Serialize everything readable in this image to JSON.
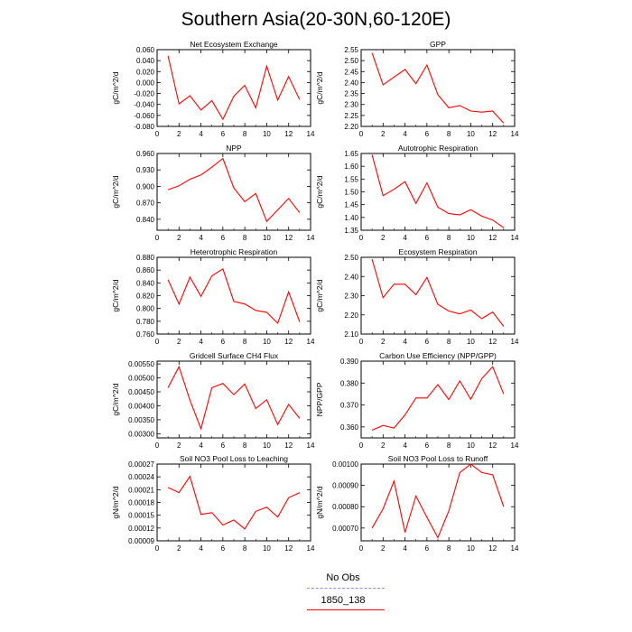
{
  "title": "Southern Asia(20-30N,60-120E)",
  "legend": [
    {
      "label": "No Obs",
      "color": "#8c8cff",
      "dash": true
    },
    {
      "label": "1850_138",
      "color": "#ff0000",
      "dash": false
    }
  ],
  "chart_data": [
    {
      "type": "line",
      "title": "Net Ecosystem Exchange",
      "ylabel": "gC/m^2/d",
      "xlim": [
        0,
        14
      ],
      "xticks": [
        0,
        2,
        4,
        6,
        8,
        10,
        12,
        14
      ],
      "ylim": [
        -0.08,
        0.06
      ],
      "yticks": [
        "-0.080",
        "-0.060",
        "-0.040",
        "-0.020",
        "0.000",
        "0.020",
        "0.040",
        "0.060"
      ],
      "x": [
        1,
        2,
        3,
        4,
        5,
        6,
        7,
        8,
        9,
        10,
        11,
        12,
        13
      ],
      "series": [
        {
          "name": "1850_138",
          "values": [
            0.049,
            -0.039,
            -0.024,
            -0.05,
            -0.033,
            -0.067,
            -0.025,
            -0.005,
            -0.046,
            0.03,
            -0.032,
            0.011,
            -0.031
          ]
        }
      ]
    },
    {
      "type": "line",
      "title": "GPP",
      "ylabel": "gC/m^2/d",
      "xlim": [
        0,
        14
      ],
      "xticks": [
        0,
        2,
        4,
        6,
        8,
        10,
        12,
        14
      ],
      "ylim": [
        2.2,
        2.55
      ],
      "yticks": [
        "2.20",
        "2.25",
        "2.30",
        "2.35",
        "2.40",
        "2.45",
        "2.50",
        "2.55"
      ],
      "x": [
        1,
        2,
        3,
        4,
        5,
        6,
        7,
        8,
        9,
        10,
        11,
        12,
        13
      ],
      "series": [
        {
          "name": "1850_138",
          "values": [
            2.535,
            2.39,
            2.425,
            2.46,
            2.395,
            2.48,
            2.345,
            2.285,
            2.295,
            2.27,
            2.265,
            2.27,
            2.215
          ]
        }
      ]
    },
    {
      "type": "line",
      "title": "NPP",
      "ylabel": "gC/m^2/d",
      "xlim": [
        0,
        14
      ],
      "xticks": [
        0,
        2,
        4,
        6,
        8,
        10,
        12,
        14
      ],
      "ylim": [
        0.82,
        0.96
      ],
      "yticks": [
        "0.840",
        "0.870",
        "0.900",
        "0.930",
        "0.960"
      ],
      "ytickvals": [
        0.84,
        0.87,
        0.9,
        0.93,
        0.96
      ],
      "x": [
        1,
        2,
        3,
        4,
        5,
        6,
        7,
        8,
        9,
        10,
        11,
        12,
        13
      ],
      "series": [
        {
          "name": "1850_138",
          "values": [
            0.894,
            0.901,
            0.913,
            0.921,
            0.935,
            0.951,
            0.897,
            0.872,
            0.887,
            0.836,
            0.857,
            0.878,
            0.852
          ]
        }
      ]
    },
    {
      "type": "line",
      "title": "Autotrophic Respiration",
      "ylabel": "gC/m^2/d",
      "xlim": [
        0,
        14
      ],
      "xticks": [
        0,
        2,
        4,
        6,
        8,
        10,
        12,
        14
      ],
      "ylim": [
        1.35,
        1.65
      ],
      "yticks": [
        "1.35",
        "1.40",
        "1.45",
        "1.50",
        "1.55",
        "1.60",
        "1.65"
      ],
      "x": [
        1,
        2,
        3,
        4,
        5,
        6,
        7,
        8,
        9,
        10,
        11,
        12,
        13
      ],
      "series": [
        {
          "name": "1850_138",
          "values": [
            1.645,
            1.485,
            1.51,
            1.54,
            1.455,
            1.535,
            1.44,
            1.415,
            1.41,
            1.43,
            1.405,
            1.39,
            1.36
          ]
        }
      ]
    },
    {
      "type": "line",
      "title": "Heterotrophic Respiration",
      "ylabel": "gC/m^2/d",
      "xlim": [
        0,
        14
      ],
      "xticks": [
        0,
        2,
        4,
        6,
        8,
        10,
        12,
        14
      ],
      "ylim": [
        0.76,
        0.88
      ],
      "yticks": [
        "0.760",
        "0.780",
        "0.800",
        "0.820",
        "0.840",
        "0.860",
        "0.880"
      ],
      "x": [
        1,
        2,
        3,
        4,
        5,
        6,
        7,
        8,
        9,
        10,
        11,
        12,
        13
      ],
      "series": [
        {
          "name": "1850_138",
          "values": [
            0.845,
            0.807,
            0.849,
            0.819,
            0.851,
            0.862,
            0.811,
            0.807,
            0.797,
            0.794,
            0.777,
            0.826,
            0.779
          ]
        }
      ]
    },
    {
      "type": "line",
      "title": "Ecosystem Respiration",
      "ylabel": "gC/m^2/d",
      "xlim": [
        0,
        14
      ],
      "xticks": [
        0,
        2,
        4,
        6,
        8,
        10,
        12,
        14
      ],
      "ylim": [
        2.1,
        2.5
      ],
      "yticks": [
        "2.10",
        "2.20",
        "2.30",
        "2.40",
        "2.50"
      ],
      "x": [
        1,
        2,
        3,
        4,
        5,
        6,
        7,
        8,
        9,
        10,
        11,
        12,
        13
      ],
      "series": [
        {
          "name": "1850_138",
          "values": [
            2.49,
            2.29,
            2.36,
            2.36,
            2.305,
            2.395,
            2.255,
            2.22,
            2.205,
            2.225,
            2.18,
            2.215,
            2.14
          ]
        }
      ]
    },
    {
      "type": "line",
      "title": "Gridcell Surface CH4 Flux",
      "ylabel": "gC/m^2/d",
      "xlim": [
        0,
        14
      ],
      "xticks": [
        0,
        2,
        4,
        6,
        8,
        10,
        12,
        14
      ],
      "ylim": [
        0.00285,
        0.0056
      ],
      "yticks": [
        "0.00300",
        "0.00350",
        "0.00400",
        "0.00450",
        "0.00500",
        "0.00550"
      ],
      "ytickvals": [
        0.003,
        0.0035,
        0.004,
        0.0045,
        0.005,
        0.0055
      ],
      "x": [
        1,
        2,
        3,
        4,
        5,
        6,
        7,
        8,
        9,
        10,
        11,
        12,
        13
      ],
      "series": [
        {
          "name": "1850_138",
          "values": [
            0.00465,
            0.0054,
            0.0042,
            0.00318,
            0.00465,
            0.0048,
            0.0044,
            0.00478,
            0.0039,
            0.00422,
            0.00333,
            0.00405,
            0.00355
          ]
        }
      ]
    },
    {
      "type": "line",
      "title": "Carbon Use Efficiency (NPP/GPP)",
      "ylabel": "NPP/GPP",
      "xlim": [
        0,
        14
      ],
      "xticks": [
        0,
        2,
        4,
        6,
        8,
        10,
        12,
        14
      ],
      "ylim": [
        0.355,
        0.39
      ],
      "yticks": [
        "0.360",
        "0.370",
        "0.380",
        "0.390"
      ],
      "ytickvals": [
        0.36,
        0.37,
        0.38,
        0.39
      ],
      "x": [
        1,
        2,
        3,
        4,
        5,
        6,
        7,
        8,
        9,
        10,
        11,
        12,
        13
      ],
      "series": [
        {
          "name": "1850_138",
          "values": [
            0.3585,
            0.3607,
            0.3595,
            0.3655,
            0.3732,
            0.3732,
            0.3793,
            0.3725,
            0.381,
            0.3726,
            0.382,
            0.3875,
            0.375
          ]
        }
      ]
    },
    {
      "type": "line",
      "title": "Soil NO3 Pool Loss to Leaching",
      "ylabel": "gN/m^2/d",
      "xlim": [
        0,
        14
      ],
      "xticks": [
        0,
        2,
        4,
        6,
        8,
        10,
        12,
        14
      ],
      "ylim": [
        9e-05,
        0.00027
      ],
      "yticks": [
        "0.00009",
        "0.00012",
        "0.00015",
        "0.00018",
        "0.00021",
        "0.00024",
        "0.00027"
      ],
      "x": [
        1,
        2,
        3,
        4,
        5,
        6,
        7,
        8,
        9,
        10,
        11,
        12,
        13
      ],
      "series": [
        {
          "name": "1850_138",
          "values": [
            0.000215,
            0.000203,
            0.000241,
            0.000152,
            0.000156,
            0.000127,
            0.000139,
            0.000118,
            0.000159,
            0.000169,
            0.000146,
            0.000191,
            0.000203
          ]
        }
      ]
    },
    {
      "type": "line",
      "title": "Soil NO3 Pool Loss to Runoff",
      "ylabel": "gN/m^2/d",
      "xlim": [
        0,
        14
      ],
      "xticks": [
        0,
        2,
        4,
        6,
        8,
        10,
        12,
        14
      ],
      "ylim": [
        0.00064,
        0.001
      ],
      "yticks": [
        "0.00070",
        "0.00080",
        "0.00090",
        "0.00100"
      ],
      "ytickvals": [
        0.0007,
        0.0008,
        0.0009,
        0.001
      ],
      "x": [
        1,
        2,
        3,
        4,
        5,
        6,
        7,
        8,
        9,
        10,
        11,
        12,
        13
      ],
      "series": [
        {
          "name": "1850_138",
          "values": [
            0.0007,
            0.00079,
            0.00092,
            0.00068,
            0.00085,
            0.00075,
            0.000655,
            0.00078,
            0.00096,
            0.001,
            0.00096,
            0.00095,
            0.0008
          ]
        }
      ]
    }
  ]
}
